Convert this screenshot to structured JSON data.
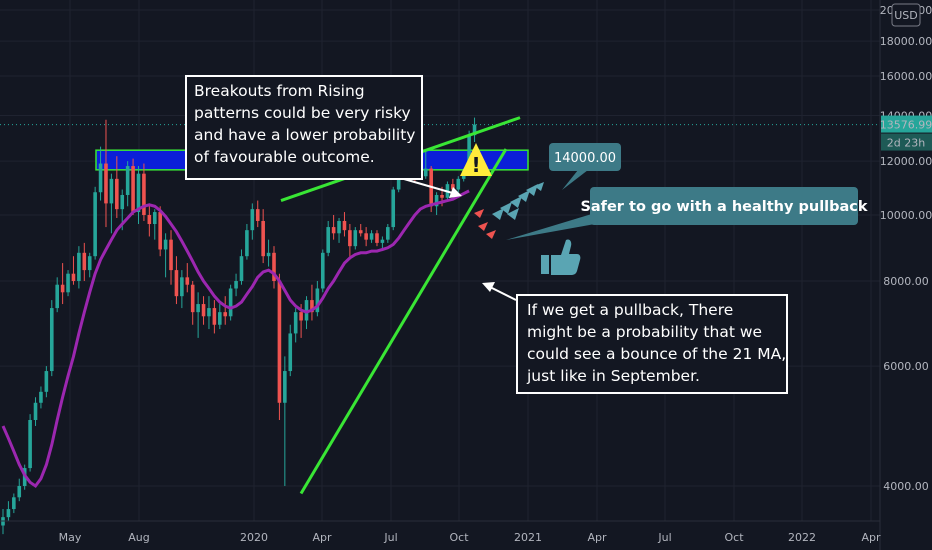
{
  "currency_badge": "USD",
  "price_label": "13576.99",
  "countdown_label": "2d 23h",
  "colors": {
    "background": "#131722",
    "up_candle": "#26a69a",
    "down_candle": "#ef5350",
    "ma_line": "#9c27b0",
    "trendline": "#39e635",
    "zone_fill": "#0b1fd8",
    "zone_border": "#39e635",
    "callout_teal": "#3d7a87",
    "warning_yellow": "#ffeb3b"
  },
  "chart_data": {
    "type": "candlestick",
    "y_ticks": [
      "20000.00",
      "18000.00",
      "16000.00",
      "14000.00",
      "12000.00",
      "10000.00",
      "8000.00",
      "6000.00",
      "4000.00"
    ],
    "y_tick_values": [
      20000,
      18000,
      16000,
      14000,
      12000,
      10000,
      8000,
      6000,
      4000
    ],
    "x_ticks": [
      "May",
      "Aug",
      "2020",
      "Apr",
      "Jul",
      "Oct",
      "2021",
      "Apr",
      "Jul",
      "Oct",
      "2022",
      "Apr"
    ],
    "ylim": [
      3100,
      20000
    ],
    "log_scale": true,
    "current_price": 13576.99,
    "candles": [
      {
        "o": 3500,
        "h": 3700,
        "l": 3400,
        "c": 3600
      },
      {
        "o": 3600,
        "h": 3800,
        "l": 3550,
        "c": 3700
      },
      {
        "o": 3700,
        "h": 3900,
        "l": 3650,
        "c": 3850
      },
      {
        "o": 3850,
        "h": 4100,
        "l": 3800,
        "c": 4000
      },
      {
        "o": 4000,
        "h": 4300,
        "l": 3950,
        "c": 4250
      },
      {
        "o": 4250,
        "h": 5100,
        "l": 4200,
        "c": 5000
      },
      {
        "o": 5000,
        "h": 5400,
        "l": 4900,
        "c": 5300
      },
      {
        "o": 5300,
        "h": 5600,
        "l": 5200,
        "c": 5500
      },
      {
        "o": 5500,
        "h": 6000,
        "l": 5400,
        "c": 5900
      },
      {
        "o": 5900,
        "h": 7500,
        "l": 5800,
        "c": 7300
      },
      {
        "o": 7300,
        "h": 8100,
        "l": 7200,
        "c": 7900
      },
      {
        "o": 7900,
        "h": 8500,
        "l": 7400,
        "c": 7700
      },
      {
        "o": 7700,
        "h": 8300,
        "l": 7600,
        "c": 8200
      },
      {
        "o": 8200,
        "h": 8700,
        "l": 7900,
        "c": 8000
      },
      {
        "o": 8000,
        "h": 9000,
        "l": 7800,
        "c": 8800
      },
      {
        "o": 8800,
        "h": 9100,
        "l": 8000,
        "c": 8300
      },
      {
        "o": 8300,
        "h": 8800,
        "l": 8100,
        "c": 8700
      },
      {
        "o": 8700,
        "h": 11000,
        "l": 8600,
        "c": 10800
      },
      {
        "o": 10800,
        "h": 12600,
        "l": 10500,
        "c": 11900
      },
      {
        "o": 11900,
        "h": 13800,
        "l": 9600,
        "c": 10400
      },
      {
        "o": 10400,
        "h": 11500,
        "l": 9400,
        "c": 11300
      },
      {
        "o": 11300,
        "h": 12200,
        "l": 9900,
        "c": 10200
      },
      {
        "o": 10200,
        "h": 10900,
        "l": 9500,
        "c": 10700
      },
      {
        "o": 10700,
        "h": 12000,
        "l": 10300,
        "c": 11800
      },
      {
        "o": 11800,
        "h": 12100,
        "l": 10000,
        "c": 10100
      },
      {
        "o": 10100,
        "h": 11800,
        "l": 9700,
        "c": 11500
      },
      {
        "o": 11500,
        "h": 11900,
        "l": 9800,
        "c": 10000
      },
      {
        "o": 10000,
        "h": 10400,
        "l": 9300,
        "c": 9700
      },
      {
        "o": 9700,
        "h": 10200,
        "l": 9200,
        "c": 10100
      },
      {
        "o": 10100,
        "h": 10300,
        "l": 8700,
        "c": 8900
      },
      {
        "o": 8900,
        "h": 9400,
        "l": 8100,
        "c": 9200
      },
      {
        "o": 9200,
        "h": 9500,
        "l": 7900,
        "c": 8300
      },
      {
        "o": 8300,
        "h": 8700,
        "l": 7400,
        "c": 7600
      },
      {
        "o": 7600,
        "h": 8300,
        "l": 7300,
        "c": 8100
      },
      {
        "o": 8100,
        "h": 8500,
        "l": 7700,
        "c": 7900
      },
      {
        "o": 7900,
        "h": 8000,
        "l": 6900,
        "c": 7200
      },
      {
        "o": 7200,
        "h": 7700,
        "l": 6600,
        "c": 7400
      },
      {
        "o": 7400,
        "h": 7600,
        "l": 6900,
        "c": 7100
      },
      {
        "o": 7100,
        "h": 7600,
        "l": 6800,
        "c": 7300
      },
      {
        "o": 7300,
        "h": 7500,
        "l": 6700,
        "c": 6900
      },
      {
        "o": 6900,
        "h": 7400,
        "l": 6800,
        "c": 7200
      },
      {
        "o": 7200,
        "h": 7600,
        "l": 6900,
        "c": 7100
      },
      {
        "o": 7100,
        "h": 7900,
        "l": 7000,
        "c": 7800
      },
      {
        "o": 7800,
        "h": 8200,
        "l": 7600,
        "c": 8000
      },
      {
        "o": 8000,
        "h": 8900,
        "l": 7900,
        "c": 8700
      },
      {
        "o": 8700,
        "h": 9700,
        "l": 8600,
        "c": 9500
      },
      {
        "o": 9500,
        "h": 10400,
        "l": 9200,
        "c": 10200
      },
      {
        "o": 10200,
        "h": 10500,
        "l": 9600,
        "c": 9800
      },
      {
        "o": 9800,
        "h": 10200,
        "l": 8500,
        "c": 8700
      },
      {
        "o": 8700,
        "h": 9200,
        "l": 8400,
        "c": 8800
      },
      {
        "o": 8800,
        "h": 9000,
        "l": 7800,
        "c": 8000
      },
      {
        "o": 8000,
        "h": 8200,
        "l": 5000,
        "c": 5300
      },
      {
        "o": 5300,
        "h": 6200,
        "l": 4000,
        "c": 5900
      },
      {
        "o": 5900,
        "h": 6900,
        "l": 5800,
        "c": 6700
      },
      {
        "o": 6700,
        "h": 7300,
        "l": 6500,
        "c": 7200
      },
      {
        "o": 7200,
        "h": 7400,
        "l": 6600,
        "c": 7000
      },
      {
        "o": 7000,
        "h": 7600,
        "l": 6800,
        "c": 7500
      },
      {
        "o": 7500,
        "h": 7900,
        "l": 7000,
        "c": 7200
      },
      {
        "o": 7200,
        "h": 8000,
        "l": 7100,
        "c": 7800
      },
      {
        "o": 7800,
        "h": 8900,
        "l": 7700,
        "c": 8800
      },
      {
        "o": 8800,
        "h": 9800,
        "l": 8700,
        "c": 9600
      },
      {
        "o": 9600,
        "h": 10000,
        "l": 9200,
        "c": 9400
      },
      {
        "o": 9400,
        "h": 9900,
        "l": 9100,
        "c": 9800
      },
      {
        "o": 9800,
        "h": 10100,
        "l": 9300,
        "c": 9500
      },
      {
        "o": 9500,
        "h": 9700,
        "l": 8600,
        "c": 9000
      },
      {
        "o": 9000,
        "h": 9600,
        "l": 8900,
        "c": 9500
      },
      {
        "o": 9500,
        "h": 9700,
        "l": 9300,
        "c": 9400
      },
      {
        "o": 9400,
        "h": 9600,
        "l": 9000,
        "c": 9200
      },
      {
        "o": 9200,
        "h": 9500,
        "l": 9100,
        "c": 9400
      },
      {
        "o": 9400,
        "h": 9500,
        "l": 9000,
        "c": 9100
      },
      {
        "o": 9100,
        "h": 9300,
        "l": 8900,
        "c": 9200
      },
      {
        "o": 9200,
        "h": 9700,
        "l": 9100,
        "c": 9600
      },
      {
        "o": 9600,
        "h": 11000,
        "l": 9500,
        "c": 10900
      },
      {
        "o": 10900,
        "h": 11600,
        "l": 10800,
        "c": 11400
      },
      {
        "o": 11400,
        "h": 12100,
        "l": 11300,
        "c": 11800
      },
      {
        "o": 11800,
        "h": 12300,
        "l": 11400,
        "c": 11700
      },
      {
        "o": 11700,
        "h": 12000,
        "l": 11200,
        "c": 11600
      },
      {
        "o": 11600,
        "h": 11900,
        "l": 11300,
        "c": 11400
      },
      {
        "o": 11400,
        "h": 12400,
        "l": 11300,
        "c": 11700
      },
      {
        "o": 11700,
        "h": 11800,
        "l": 10100,
        "c": 10300
      },
      {
        "o": 10300,
        "h": 10800,
        "l": 10000,
        "c": 10700
      },
      {
        "o": 10700,
        "h": 11000,
        "l": 10300,
        "c": 10600
      },
      {
        "o": 10600,
        "h": 11200,
        "l": 10500,
        "c": 11100
      },
      {
        "o": 11100,
        "h": 11300,
        "l": 10800,
        "c": 10900
      },
      {
        "o": 10900,
        "h": 11400,
        "l": 10800,
        "c": 11300
      },
      {
        "o": 11300,
        "h": 11700,
        "l": 11200,
        "c": 11600
      },
      {
        "o": 11600,
        "h": 13300,
        "l": 11500,
        "c": 13100
      },
      {
        "o": 13100,
        "h": 13900,
        "l": 12800,
        "c": 13577
      }
    ],
    "ma_values": [
      4900,
      4700,
      4500,
      4300,
      4150,
      4050,
      4000,
      4100,
      4300,
      4600,
      5000,
      5400,
      5800,
      6200,
      6700,
      7200,
      7700,
      8200,
      8600,
      8900,
      9200,
      9500,
      9700,
      9900,
      10100,
      10200,
      10300,
      10350,
      10300,
      10150,
      9950,
      9700,
      9450,
      9150,
      8850,
      8550,
      8250,
      8000,
      7800,
      7600,
      7450,
      7350,
      7300,
      7350,
      7450,
      7650,
      7850,
      8100,
      8250,
      8300,
      8200,
      8000,
      7750,
      7500,
      7350,
      7250,
      7200,
      7250,
      7350,
      7550,
      7800,
      8000,
      8250,
      8500,
      8650,
      8750,
      8800,
      8800,
      8850,
      8850,
      8900,
      8950,
      9050,
      9250,
      9500,
      9750,
      10000,
      10200,
      10300,
      10350,
      10400,
      10450,
      10500,
      10550,
      10650,
      10750,
      10850
    ],
    "resistance_zone": {
      "low": 11650,
      "high": 12450
    },
    "rising_wedge": {
      "upper_line": {
        "from": 10500,
        "to": 13900
      },
      "lower_line": {
        "from": 3900,
        "to": 12500
      }
    },
    "target_label": "14000.00",
    "target_value": 14000
  },
  "annotations": {
    "warning_box": [
      "Breakouts from Rising",
      "patterns could be very risky",
      "and have a lower probability",
      "of favourable outcome."
    ],
    "warning_icon_glyph": "!",
    "pullback_callout": "Safer to go with a healthy pullback",
    "ma_box": [
      "If we get a pullback, There",
      "might be a probability that we",
      "could see a bounce of the 21 MA,",
      "just like in September."
    ]
  }
}
